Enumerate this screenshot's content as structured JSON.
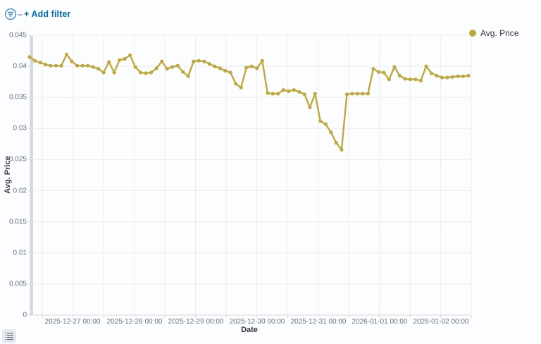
{
  "filter_bar": {
    "add_filter_label": "+ Add filter",
    "filter_icon": "filter-circle-icon"
  },
  "legend": {
    "label": "Avg. Price",
    "toggle_icon": "legend-list-icon"
  },
  "colors": {
    "accent": "#006BB4",
    "series": "#BFA93F",
    "grid": "#ededf0",
    "axis_line": "#d6d9de",
    "axis_band": "#d4d7dc",
    "axis_text": "#69707d",
    "title_text": "#343741"
  },
  "chart_data": {
    "type": "line",
    "title": "",
    "xlabel": "Date",
    "ylabel": "Avg. Price",
    "grid": true,
    "legend_position": "top-right",
    "ylim": [
      0,
      0.045
    ],
    "y_ticks": [
      0.045,
      0.04,
      0.035,
      0.03,
      0.025,
      0.02,
      0.015,
      0.01,
      0.005,
      0
    ],
    "y_tick_labels": [
      "0.045",
      "0.04",
      "0.035",
      "0.03",
      "0.025",
      "0.02",
      "0.015",
      "0.01",
      "0.005",
      "0"
    ],
    "x_tick_labels": [
      "2025-12-27 00:00",
      "2025-12-28 00:00",
      "2025-12-29 00:00",
      "2025-12-30 00:00",
      "2025-12-31 00:00",
      "2026-01-01 00:00",
      "2026-01-02 00:00"
    ],
    "x_range": "approx 2025-12-26 07:00 to 2026-01-02 11:00, one point every ~2h",
    "series": [
      {
        "name": "Avg. Price",
        "color": "#BFA93F",
        "values": [
          0.0415,
          0.0409,
          0.0406,
          0.0403,
          0.0401,
          0.0401,
          0.0401,
          0.0419,
          0.0408,
          0.0401,
          0.0401,
          0.0401,
          0.0399,
          0.0396,
          0.039,
          0.0407,
          0.039,
          0.041,
          0.0412,
          0.0418,
          0.0399,
          0.039,
          0.0389,
          0.039,
          0.0397,
          0.0408,
          0.0396,
          0.0399,
          0.0401,
          0.0391,
          0.0384,
          0.0408,
          0.0409,
          0.0408,
          0.0404,
          0.04,
          0.0397,
          0.0393,
          0.039,
          0.0372,
          0.0366,
          0.0398,
          0.04,
          0.0397,
          0.0409,
          0.0357,
          0.0356,
          0.0356,
          0.0362,
          0.036,
          0.0362,
          0.0359,
          0.0355,
          0.0334,
          0.0356,
          0.0312,
          0.0307,
          0.0294,
          0.0277,
          0.0266,
          0.0355,
          0.0356,
          0.0356,
          0.0356,
          0.0356,
          0.0396,
          0.0391,
          0.039,
          0.0379,
          0.0399,
          0.0385,
          0.038,
          0.0379,
          0.0379,
          0.0377,
          0.04,
          0.0389,
          0.0385,
          0.0382,
          0.0382,
          0.0383,
          0.0384,
          0.0384,
          0.0385
        ]
      }
    ]
  }
}
